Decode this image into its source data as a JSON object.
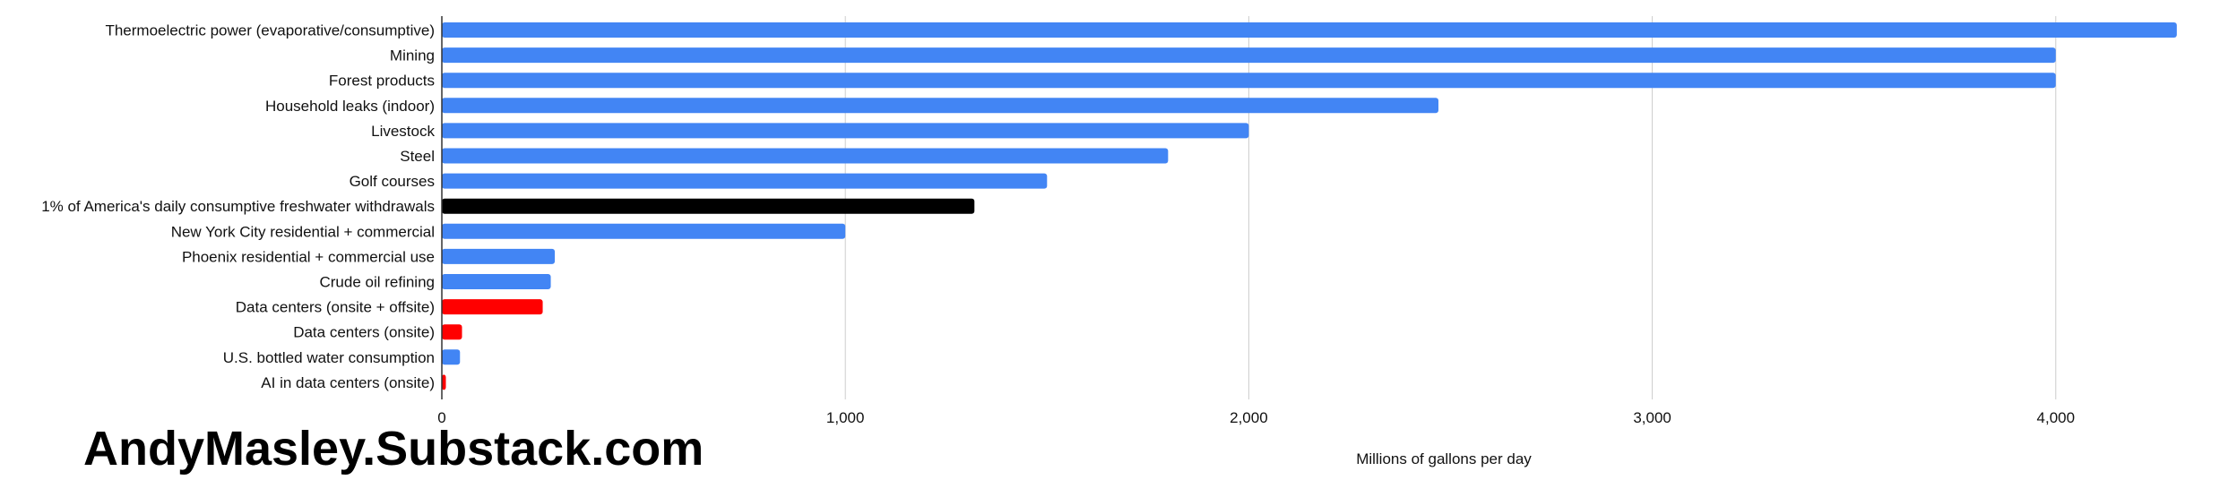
{
  "watermark": "AndyMasley.Substack.com",
  "chart_data": {
    "type": "bar",
    "orientation": "horizontal",
    "title": "",
    "xlabel": "Millions of gallons per day",
    "ylabel": "",
    "xlim": [
      0,
      4300
    ],
    "xticks": [
      0,
      1000,
      2000,
      3000,
      4000
    ],
    "xtick_labels": [
      "0",
      "1,000",
      "2,000",
      "3,000",
      "4,000"
    ],
    "grid": true,
    "categories": [
      "Thermoelectric power (evaporative/consumptive)",
      "Mining",
      "Forest products",
      "Household leaks (indoor)",
      "Livestock",
      "Steel",
      "Golf courses",
      "1% of America's daily consumptive freshwater withdrawals",
      "New York City residential + commercial",
      "Phoenix residential + commercial use",
      "Crude oil refining",
      "Data centers (onsite + offsite)",
      "Data centers (onsite)",
      "U.S. bottled water consumption",
      "AI in data centers (onsite)"
    ],
    "values": [
      4300,
      4000,
      4000,
      2470,
      2000,
      1800,
      1500,
      1320,
      1000,
      280,
      270,
      250,
      50,
      45,
      10
    ],
    "colors": [
      "#4285f4",
      "#4285f4",
      "#4285f4",
      "#4285f4",
      "#4285f4",
      "#4285f4",
      "#4285f4",
      "#000000",
      "#4285f4",
      "#4285f4",
      "#4285f4",
      "#ff0000",
      "#ff0000",
      "#4285f4",
      "#ff0000"
    ]
  }
}
